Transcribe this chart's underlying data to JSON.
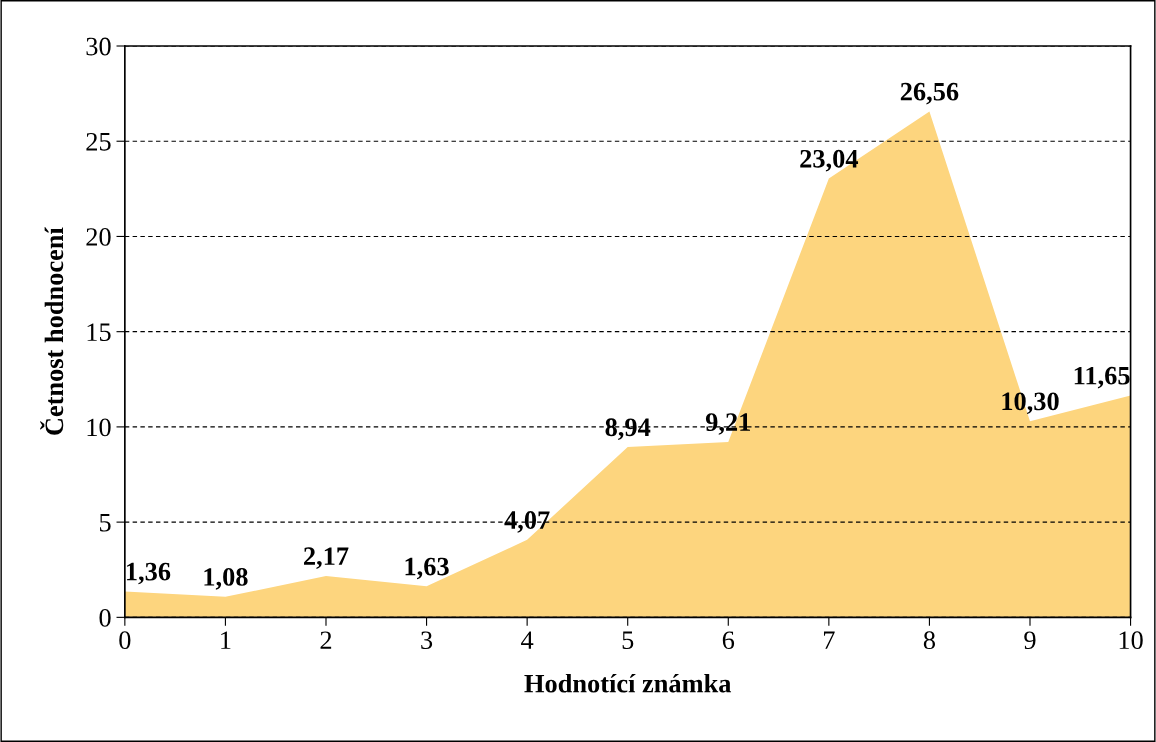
{
  "chart_data": {
    "type": "area",
    "xlabel": "Hodnotící známka",
    "ylabel": "Četnost hodnocení",
    "x": [
      0,
      1,
      2,
      3,
      4,
      5,
      6,
      7,
      8,
      9,
      10
    ],
    "values": [
      1.36,
      1.08,
      2.17,
      1.63,
      4.07,
      8.94,
      9.21,
      23.04,
      26.56,
      10.3,
      11.65
    ],
    "value_labels": [
      "1,36",
      "1,08",
      "2,17",
      "1,63",
      "4,07",
      "8,94",
      "9,21",
      "23,04",
      "26,56",
      "10,30",
      "11,65"
    ],
    "color": "#fdd57e",
    "xlim": [
      0,
      10
    ],
    "xticks": [
      0,
      1,
      2,
      3,
      4,
      5,
      6,
      7,
      8,
      9,
      10
    ],
    "ylim": [
      0,
      30
    ],
    "yticks": [
      0,
      5,
      10,
      15,
      20,
      25,
      30
    ],
    "grid": "y"
  }
}
